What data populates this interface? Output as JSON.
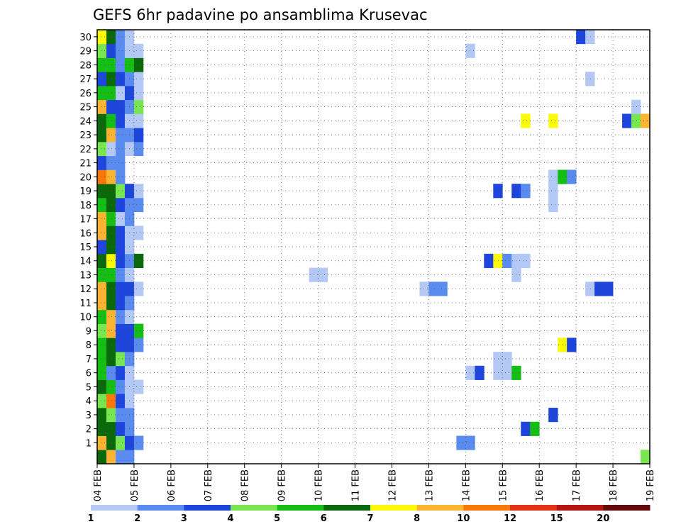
{
  "chart_data": {
    "type": "heatmap",
    "title": "GEFS 6hr padavine po ansamblima Krusevac",
    "x_tick_labels": [
      "04 FEB",
      "05 FEB",
      "06 FEB",
      "07 FEB",
      "08 FEB",
      "09 FEB",
      "10 FEB",
      "11 FEB",
      "12 FEB",
      "13 FEB",
      "14 FEB",
      "15 FEB",
      "16 FEB",
      "17 FEB",
      "18 FEB",
      "19 FEB"
    ],
    "y_tick_labels": [
      "1",
      "2",
      "3",
      "4",
      "5",
      "6",
      "7",
      "8",
      "9",
      "10",
      "11",
      "12",
      "13",
      "14",
      "15",
      "16",
      "17",
      "18",
      "19",
      "20",
      "21",
      "22",
      "23",
      "24",
      "25",
      "26",
      "27",
      "28",
      "29",
      "30"
    ],
    "x_steps_per_day": 4,
    "x_range_steps": [
      0,
      60
    ],
    "y_range": [
      0,
      30
    ],
    "grid": true,
    "legend_position": "bottom",
    "colorbar": {
      "levels": [
        "1",
        "2",
        "3",
        "4",
        "5",
        "6",
        "7",
        "8",
        "10",
        "12",
        "15",
        "20"
      ],
      "colors": [
        "#b4c8f5",
        "#5a8cf0",
        "#1e46dc",
        "#78e650",
        "#14be14",
        "#0a690a",
        "#fafa0a",
        "#fab432",
        "#fa780a",
        "#e63214",
        "#b41414",
        "#640a0a"
      ]
    },
    "cells_format": "[member, step_from_04FEB_00UTC, precip_mm]",
    "cells": [
      [
        0,
        0,
        6
      ],
      [
        0,
        1,
        8
      ],
      [
        0,
        2,
        2
      ],
      [
        0,
        3,
        2
      ],
      [
        1,
        0,
        8
      ],
      [
        1,
        1,
        6
      ],
      [
        1,
        2,
        4
      ],
      [
        1,
        3,
        3
      ],
      [
        1,
        4,
        2
      ],
      [
        2,
        0,
        6
      ],
      [
        2,
        1,
        6
      ],
      [
        2,
        2,
        3
      ],
      [
        2,
        3,
        2
      ],
      [
        3,
        0,
        6
      ],
      [
        3,
        1,
        4
      ],
      [
        3,
        2,
        2
      ],
      [
        3,
        3,
        2
      ],
      [
        4,
        0,
        4
      ],
      [
        4,
        1,
        10
      ],
      [
        4,
        2,
        3
      ],
      [
        4,
        3,
        1
      ],
      [
        5,
        0,
        6
      ],
      [
        5,
        1,
        5
      ],
      [
        5,
        2,
        2
      ],
      [
        5,
        3,
        1
      ],
      [
        5,
        4,
        1
      ],
      [
        6,
        0,
        5
      ],
      [
        6,
        1,
        2
      ],
      [
        6,
        2,
        3
      ],
      [
        6,
        3,
        1
      ],
      [
        7,
        0,
        5
      ],
      [
        7,
        1,
        6
      ],
      [
        7,
        2,
        4
      ],
      [
        7,
        3,
        2
      ],
      [
        8,
        0,
        5
      ],
      [
        8,
        1,
        6
      ],
      [
        8,
        2,
        3
      ],
      [
        8,
        3,
        3
      ],
      [
        8,
        4,
        2
      ],
      [
        9,
        0,
        4
      ],
      [
        9,
        1,
        8
      ],
      [
        9,
        2,
        3
      ],
      [
        9,
        3,
        3
      ],
      [
        9,
        4,
        5
      ],
      [
        10,
        0,
        5
      ],
      [
        10,
        1,
        8
      ],
      [
        10,
        2,
        2
      ],
      [
        10,
        3,
        1
      ],
      [
        11,
        0,
        8
      ],
      [
        11,
        1,
        6
      ],
      [
        11,
        2,
        3
      ],
      [
        11,
        3,
        2
      ],
      [
        12,
        0,
        8
      ],
      [
        12,
        1,
        6
      ],
      [
        12,
        2,
        3
      ],
      [
        12,
        3,
        3
      ],
      [
        12,
        4,
        1
      ],
      [
        13,
        0,
        5
      ],
      [
        13,
        1,
        5
      ],
      [
        13,
        2,
        2
      ],
      [
        13,
        3,
        1
      ],
      [
        14,
        0,
        6
      ],
      [
        14,
        1,
        7
      ],
      [
        14,
        2,
        3
      ],
      [
        14,
        3,
        2
      ],
      [
        14,
        4,
        6
      ],
      [
        15,
        0,
        3
      ],
      [
        15,
        1,
        6
      ],
      [
        15,
        2,
        3
      ],
      [
        15,
        3,
        1
      ],
      [
        16,
        0,
        8
      ],
      [
        16,
        1,
        6
      ],
      [
        16,
        2,
        3
      ],
      [
        16,
        3,
        1
      ],
      [
        16,
        4,
        1
      ],
      [
        17,
        0,
        9
      ],
      [
        17,
        1,
        5
      ],
      [
        17,
        2,
        1
      ],
      [
        17,
        3,
        2
      ],
      [
        18,
        0,
        5
      ],
      [
        18,
        1,
        6
      ],
      [
        18,
        2,
        3
      ],
      [
        18,
        3,
        2
      ],
      [
        18,
        4,
        2
      ],
      [
        19,
        0,
        6
      ],
      [
        19,
        1,
        6
      ],
      [
        19,
        2,
        4
      ],
      [
        19,
        3,
        3
      ],
      [
        19,
        4,
        1
      ],
      [
        20,
        0,
        10
      ],
      [
        20,
        1,
        9
      ],
      [
        20,
        2,
        2
      ],
      [
        21,
        0,
        3
      ],
      [
        21,
        1,
        2
      ],
      [
        21,
        2,
        2
      ],
      [
        22,
        0,
        4
      ],
      [
        22,
        1,
        1
      ],
      [
        22,
        2,
        2
      ],
      [
        22,
        3,
        1
      ],
      [
        22,
        4,
        2
      ],
      [
        23,
        0,
        6
      ],
      [
        23,
        1,
        9
      ],
      [
        23,
        2,
        2
      ],
      [
        23,
        3,
        2
      ],
      [
        23,
        4,
        3
      ],
      [
        24,
        0,
        6
      ],
      [
        24,
        1,
        5
      ],
      [
        24,
        2,
        3
      ],
      [
        24,
        3,
        1
      ],
      [
        24,
        4,
        1
      ],
      [
        25,
        0,
        9
      ],
      [
        25,
        1,
        3
      ],
      [
        25,
        2,
        3
      ],
      [
        25,
        3,
        2
      ],
      [
        25,
        4,
        4
      ],
      [
        26,
        0,
        5
      ],
      [
        26,
        1,
        5
      ],
      [
        26,
        2,
        1
      ],
      [
        26,
        3,
        3
      ],
      [
        26,
        4,
        1
      ],
      [
        27,
        0,
        3
      ],
      [
        27,
        1,
        6
      ],
      [
        27,
        2,
        3
      ],
      [
        27,
        3,
        2
      ],
      [
        27,
        4,
        1
      ],
      [
        28,
        0,
        5
      ],
      [
        28,
        1,
        5
      ],
      [
        28,
        2,
        2
      ],
      [
        28,
        3,
        5
      ],
      [
        28,
        4,
        6
      ],
      [
        29,
        0,
        4
      ],
      [
        29,
        1,
        3
      ],
      [
        29,
        2,
        2
      ],
      [
        29,
        3,
        1
      ],
      [
        29,
        4,
        1
      ],
      [
        30,
        0,
        7
      ],
      [
        30,
        1,
        6
      ],
      [
        30,
        2,
        2
      ],
      [
        30,
        3,
        1
      ],
      [
        1,
        39,
        2
      ],
      [
        1,
        40,
        2
      ],
      [
        13,
        23,
        1
      ],
      [
        13,
        24,
        1
      ],
      [
        6,
        40,
        1
      ],
      [
        6,
        41,
        3
      ],
      [
        6,
        43,
        1
      ],
      [
        6,
        44,
        1
      ],
      [
        6,
        45,
        5
      ],
      [
        7,
        43,
        1
      ],
      [
        7,
        44,
        1
      ],
      [
        8,
        50,
        7
      ],
      [
        8,
        51,
        3
      ],
      [
        12,
        35,
        1
      ],
      [
        12,
        36,
        2
      ],
      [
        12,
        37,
        2
      ],
      [
        12,
        53,
        1
      ],
      [
        12,
        54,
        3
      ],
      [
        12,
        55,
        3
      ],
      [
        13,
        45,
        1
      ],
      [
        14,
        42,
        3
      ],
      [
        14,
        43,
        7
      ],
      [
        14,
        44,
        2
      ],
      [
        14,
        45,
        1
      ],
      [
        14,
        46,
        1
      ],
      [
        18,
        49,
        1
      ],
      [
        19,
        43,
        3
      ],
      [
        19,
        45,
        3
      ],
      [
        19,
        46,
        2
      ],
      [
        19,
        49,
        1
      ],
      [
        20,
        49,
        1
      ],
      [
        20,
        50,
        5
      ],
      [
        20,
        51,
        2
      ],
      [
        24,
        46,
        7
      ],
      [
        24,
        49,
        7
      ],
      [
        24,
        57,
        3
      ],
      [
        24,
        58,
        4
      ],
      [
        24,
        59,
        9
      ],
      [
        25,
        58,
        1
      ],
      [
        27,
        53,
        1
      ],
      [
        29,
        40,
        1
      ],
      [
        30,
        52,
        3
      ],
      [
        30,
        53,
        1
      ],
      [
        0,
        59,
        4
      ],
      [
        2,
        46,
        3
      ],
      [
        2,
        47,
        5
      ],
      [
        3,
        49,
        3
      ]
    ]
  }
}
